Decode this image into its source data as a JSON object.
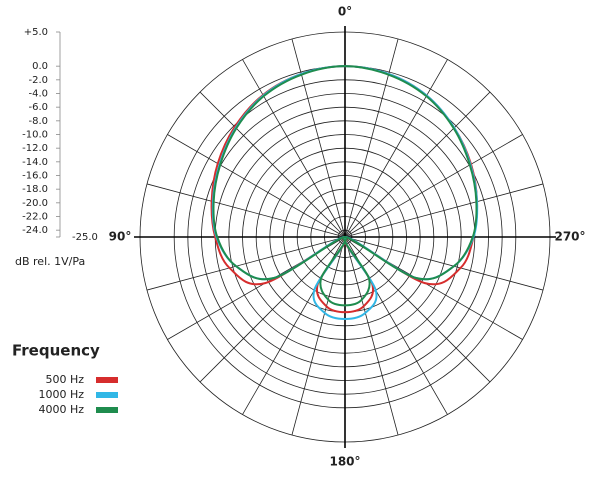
{
  "chart_data": {
    "type": "polar",
    "radial_axis_label": "dB rel. 1V/Pa",
    "legend_title": "Frequency",
    "rlim": [
      -25,
      5
    ],
    "rticks": [
      {
        "value": 5,
        "label": "+5.0"
      },
      {
        "value": 0,
        "label": "0.0"
      },
      {
        "value": -2,
        "label": "-2.0"
      },
      {
        "value": -4,
        "label": "-4.0"
      },
      {
        "value": -6,
        "label": "-6.0"
      },
      {
        "value": -8,
        "label": "-8.0"
      },
      {
        "value": -10,
        "label": "-10.0"
      },
      {
        "value": -12,
        "label": "-12.0"
      },
      {
        "value": -14,
        "label": "-14.0"
      },
      {
        "value": -16,
        "label": "-16.0"
      },
      {
        "value": -18,
        "label": "-18.0"
      },
      {
        "value": -20,
        "label": "-20.0"
      },
      {
        "value": -22,
        "label": "-22.0"
      },
      {
        "value": -24,
        "label": "-24.0"
      },
      {
        "value": -25,
        "label": "-25.0"
      }
    ],
    "thetaticks": [
      {
        "value": 0,
        "label": "0°"
      },
      {
        "value": 90,
        "label": "90°"
      },
      {
        "value": 180,
        "label": "180°"
      },
      {
        "value": 270,
        "label": "270°"
      }
    ],
    "thetagrid": [
      0,
      15,
      30,
      45,
      60,
      75,
      90,
      105,
      120,
      135,
      150,
      165,
      180,
      195,
      210,
      225,
      240,
      255,
      270,
      285,
      300,
      315,
      330,
      345
    ],
    "theta": [
      0,
      15,
      30,
      45,
      60,
      75,
      90,
      105,
      120,
      135,
      150,
      165,
      180,
      195,
      210,
      225,
      240,
      255,
      270,
      285,
      300,
      315,
      330,
      345
    ],
    "series": [
      {
        "name": "500 Hz",
        "color": "#d62d2d",
        "values": [
          0,
          -0.3,
          -1.0,
          -2.2,
          -3.5,
          -4.8,
          -6.0,
          -7.5,
          -11.5,
          -25,
          -17,
          -14.5,
          -14,
          -14.5,
          -17,
          -25,
          -11.5,
          -7.5,
          -6.2,
          -5.0,
          -3.7,
          -2.4,
          -1.1,
          -0.3
        ]
      },
      {
        "name": "1000 Hz",
        "color": "#31b7e6",
        "values": [
          0,
          -0.3,
          -1.1,
          -2.4,
          -3.8,
          -5.0,
          -6.2,
          -8.5,
          -13,
          -25,
          -16,
          -13.5,
          -13,
          -13.5,
          -16,
          -25,
          -13,
          -8.5,
          -6.2,
          -5.0,
          -3.8,
          -2.4,
          -1.1,
          -0.3
        ]
      },
      {
        "name": "4000 Hz",
        "color": "#1f8c4e",
        "values": [
          0,
          -0.4,
          -1.2,
          -2.5,
          -3.9,
          -5.1,
          -6.3,
          -8.5,
          -13,
          -25,
          -18,
          -15.5,
          -15,
          -15.5,
          -18,
          -25,
          -13,
          -8.5,
          -6.3,
          -5.1,
          -3.9,
          -2.5,
          -1.2,
          -0.4
        ]
      }
    ]
  }
}
